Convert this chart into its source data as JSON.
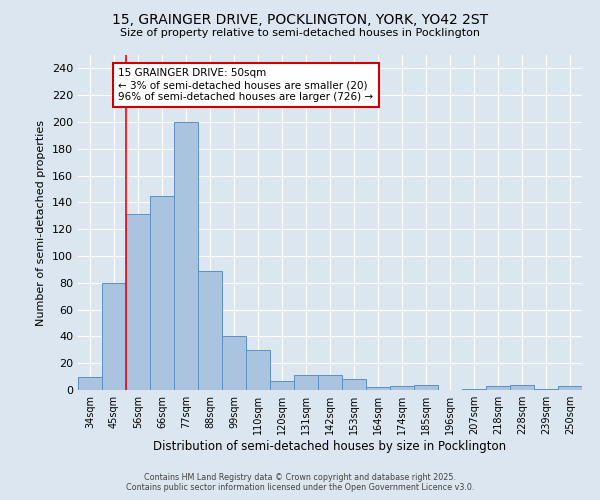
{
  "title_line1": "15, GRAINGER DRIVE, POCKLINGTON, YORK, YO42 2ST",
  "title_line2": "Size of property relative to semi-detached houses in Pocklington",
  "xlabel": "Distribution of semi-detached houses by size in Pocklington",
  "ylabel": "Number of semi-detached properties",
  "categories": [
    "34sqm",
    "45sqm",
    "56sqm",
    "66sqm",
    "77sqm",
    "88sqm",
    "99sqm",
    "110sqm",
    "120sqm",
    "131sqm",
    "142sqm",
    "153sqm",
    "164sqm",
    "174sqm",
    "185sqm",
    "196sqm",
    "207sqm",
    "218sqm",
    "228sqm",
    "239sqm",
    "250sqm"
  ],
  "values": [
    10,
    80,
    131,
    145,
    200,
    89,
    40,
    30,
    7,
    11,
    11,
    8,
    2,
    3,
    4,
    0,
    1,
    3,
    4,
    1,
    3
  ],
  "bar_color": "#aac4e0",
  "bar_edge_color": "#5b8fc9",
  "background_color": "#dce6f0",
  "grid_color": "#ffffff",
  "red_line_x": 1.5,
  "annotation_title": "15 GRAINGER DRIVE: 50sqm",
  "annotation_line2": "← 3% of semi-detached houses are smaller (20)",
  "annotation_line3": "96% of semi-detached houses are larger (726) →",
  "annotation_box_color": "#ffffff",
  "annotation_box_edge_color": "#cc0000",
  "ylim": [
    0,
    250
  ],
  "yticks": [
    0,
    20,
    40,
    60,
    80,
    100,
    120,
    140,
    160,
    180,
    200,
    220,
    240
  ],
  "footer_line1": "Contains HM Land Registry data © Crown copyright and database right 2025.",
  "footer_line2": "Contains public sector information licensed under the Open Government Licence v3.0."
}
